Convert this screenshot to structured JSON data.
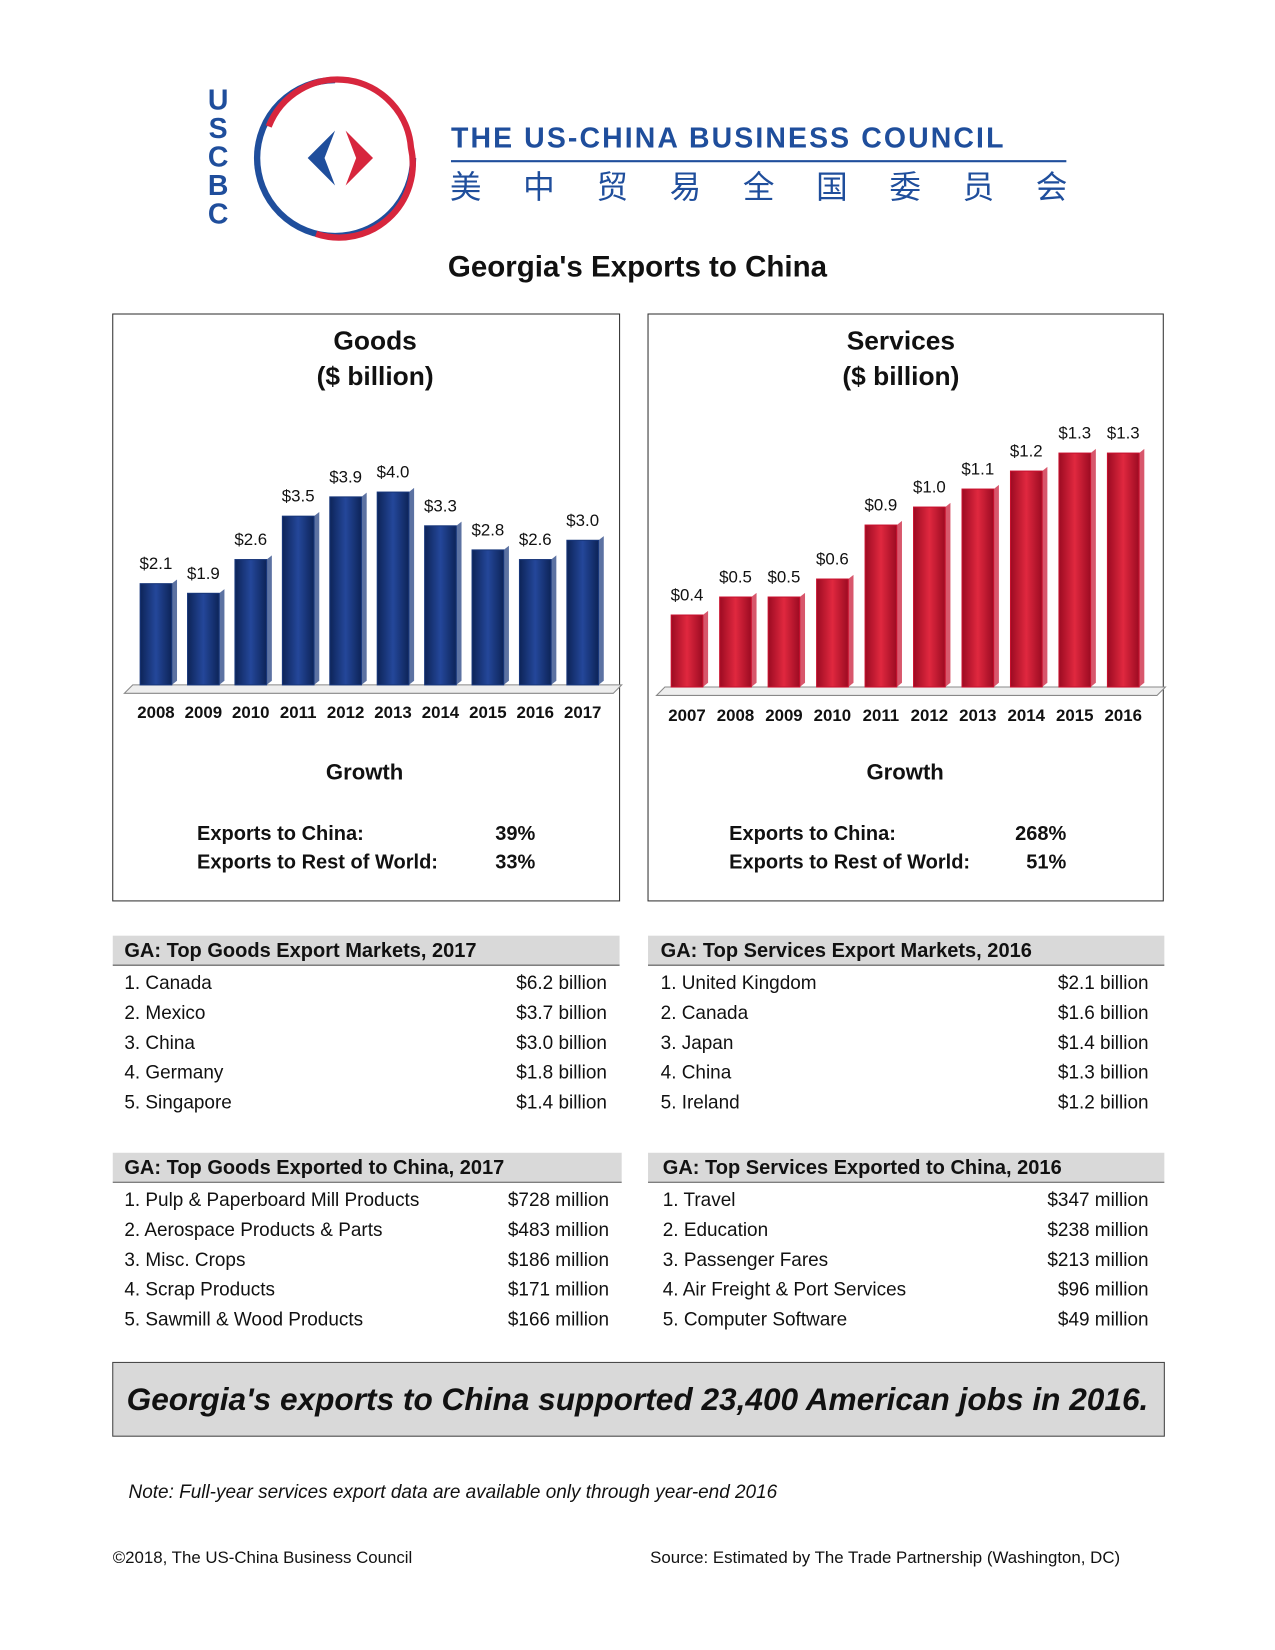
{
  "header": {
    "initials": [
      "U",
      "S",
      "C",
      "B",
      "C"
    ],
    "name": "THE US-CHINA BUSINESS COUNCIL",
    "chinese": [
      "美",
      "中",
      "贸",
      "易",
      "全",
      "国",
      "委",
      "员",
      "会"
    ]
  },
  "title": "Georgia's Exports to China",
  "chart_data": [
    {
      "type": "bar",
      "title": "Goods",
      "subtitle": "($ billion)",
      "categories": [
        "2008",
        "2009",
        "2010",
        "2011",
        "2012",
        "2013",
        "2014",
        "2015",
        "2016",
        "2017"
      ],
      "values": [
        2.1,
        1.9,
        2.6,
        3.5,
        3.9,
        4.0,
        3.3,
        2.8,
        2.6,
        3.0
      ],
      "value_labels": [
        "$2.1",
        "$1.9",
        "$2.6",
        "$3.5",
        "$3.9",
        "$4.0",
        "$3.3",
        "$2.8",
        "$2.6",
        "$3.0"
      ],
      "color": "#17367a"
    },
    {
      "type": "bar",
      "title": "Services",
      "subtitle": "($ billion)",
      "categories": [
        "2007",
        "2008",
        "2009",
        "2010",
        "2011",
        "2012",
        "2013",
        "2014",
        "2015",
        "2016"
      ],
      "values": [
        0.4,
        0.5,
        0.5,
        0.6,
        0.9,
        1.0,
        1.1,
        1.2,
        1.3,
        1.3
      ],
      "value_labels": [
        "$0.4",
        "$0.5",
        "$0.5",
        "$0.6",
        "$0.9",
        "$1.0",
        "$1.1",
        "$1.2",
        "$1.3",
        "$1.3"
      ],
      "color": "#c8102e"
    }
  ],
  "growth": [
    {
      "title": "Growth",
      "rows": [
        [
          "Exports to China:",
          "39%"
        ],
        [
          "Exports to Rest of World:",
          "33%"
        ]
      ]
    },
    {
      "title": "Growth",
      "rows": [
        [
          "Exports to China:",
          "268%"
        ],
        [
          "Exports to Rest of World:",
          "51%"
        ]
      ]
    }
  ],
  "tables": [
    {
      "title": "GA: Top Goods Export Markets, 2017",
      "rows": [
        [
          "1. Canada",
          "$6.2 billion"
        ],
        [
          "2. Mexico",
          "$3.7 billion"
        ],
        [
          "3. China",
          "$3.0 billion"
        ],
        [
          "4. Germany",
          "$1.8 billion"
        ],
        [
          "5. Singapore",
          "$1.4 billion"
        ]
      ]
    },
    {
      "title": "GA: Top Services Export Markets, 2016",
      "rows": [
        [
          "1. United Kingdom",
          "$2.1 billion"
        ],
        [
          "2. Canada",
          "$1.6 billion"
        ],
        [
          "3. Japan",
          "$1.4 billion"
        ],
        [
          "4. China",
          "$1.3 billion"
        ],
        [
          "5. Ireland",
          "$1.2 billion"
        ]
      ]
    },
    {
      "title": "GA: Top Goods Exported to China, 2017",
      "rows": [
        [
          "1. Pulp & Paperboard Mill Products",
          "$728 million"
        ],
        [
          "2. Aerospace Products & Parts",
          "$483 million"
        ],
        [
          "3. Misc. Crops",
          "$186 million"
        ],
        [
          "4. Scrap Products",
          "$171 million"
        ],
        [
          "5. Sawmill & Wood Products",
          "$166 million"
        ]
      ]
    },
    {
      "title": "GA: Top Services Exported to China, 2016",
      "rows": [
        [
          "1. Travel",
          "$347 million"
        ],
        [
          "2. Education",
          "$238 million"
        ],
        [
          "3. Passenger Fares",
          "$213 million"
        ],
        [
          "4. Air Freight & Port Services",
          "$96 million"
        ],
        [
          "5. Computer Software",
          "$49 million"
        ]
      ]
    }
  ],
  "banner": "Georgia's exports to China supported 23,400 American jobs in 2016.",
  "note": "Note: Full-year services export data are available only through year-end 2016",
  "footer": {
    "copyright": "©2018, The US-China Business Council",
    "source": "Source: Estimated by The Trade Partnership (Washington, DC)"
  }
}
